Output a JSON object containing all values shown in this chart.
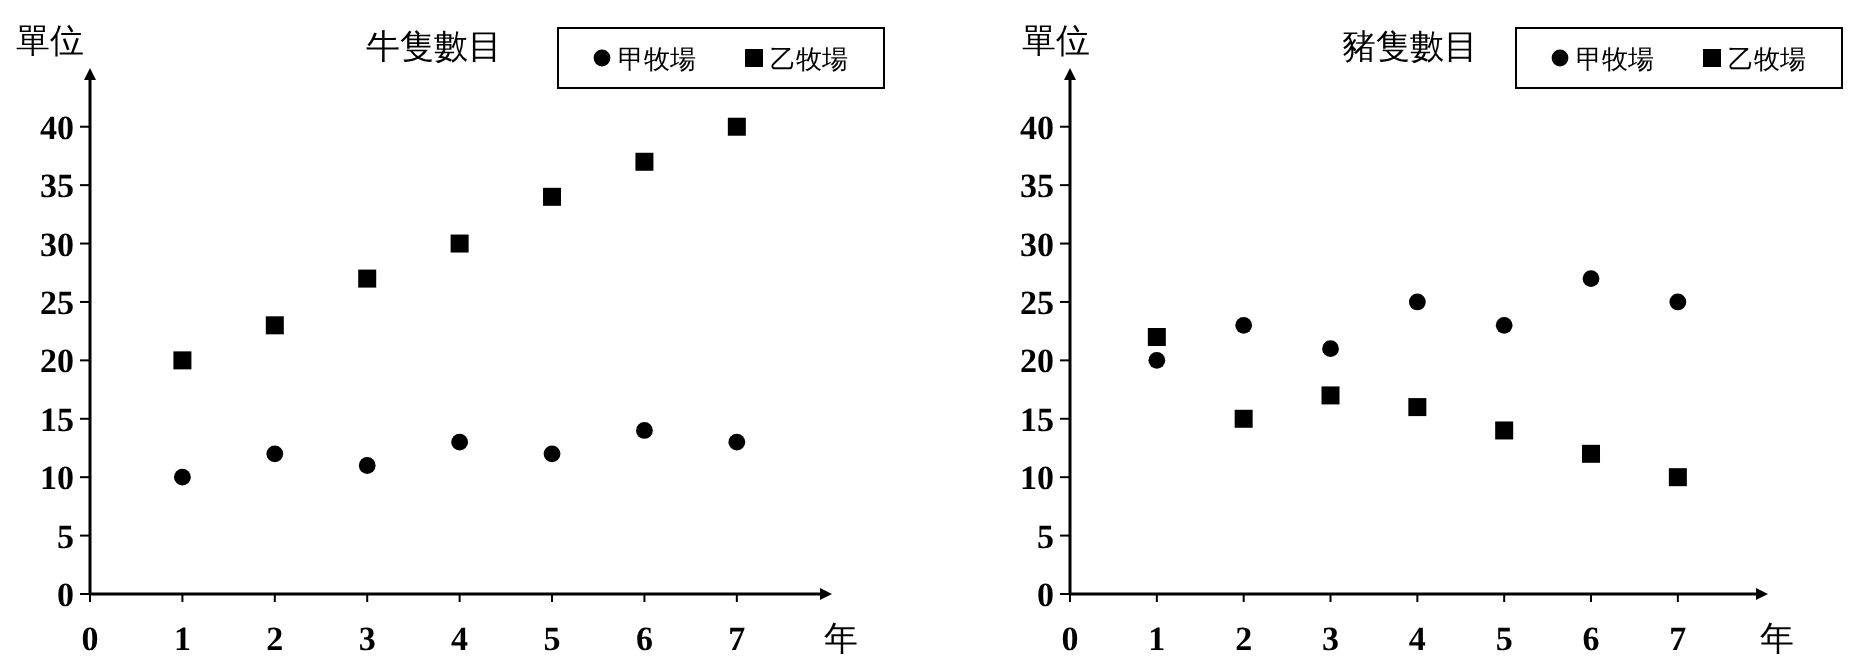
{
  "chart_data": [
    {
      "type": "scatter",
      "title": "牛隻數目",
      "xlabel": "年",
      "ylabel": "單位",
      "x": [
        1,
        2,
        3,
        4,
        5,
        6,
        7
      ],
      "series": [
        {
          "name": "甲牧場",
          "color": "#000000",
          "marker": "circle",
          "values": [
            10,
            12,
            11,
            13,
            12,
            14,
            13
          ]
        },
        {
          "name": "乙牧場",
          "color": "#000000",
          "marker": "square",
          "values": [
            20,
            23,
            27,
            30,
            34,
            37,
            40
          ]
        }
      ],
      "xlim": [
        0,
        7.9
      ],
      "xticks": [
        0,
        1,
        2,
        3,
        4,
        5,
        6,
        7
      ],
      "ylim": [
        0,
        44
      ],
      "yticks": [
        0,
        5,
        10,
        15,
        20,
        25,
        30,
        35,
        40
      ],
      "grid": false,
      "legend": "top right"
    },
    {
      "type": "scatter",
      "title": "豬隻數目",
      "xlabel": "年",
      "ylabel": "單位",
      "x": [
        1,
        2,
        3,
        4,
        5,
        6,
        7
      ],
      "series": [
        {
          "name": "甲牧場",
          "color": "#000000",
          "marker": "circle",
          "values": [
            20,
            23,
            21,
            25,
            23,
            27,
            25
          ]
        },
        {
          "name": "乙牧場",
          "color": "#000000",
          "marker": "square",
          "values": [
            22,
            15,
            17,
            16,
            14,
            12,
            10
          ]
        }
      ],
      "xlim": [
        0,
        7.9
      ],
      "xticks": [
        0,
        1,
        2,
        3,
        4,
        5,
        6,
        7
      ],
      "ylim": [
        0,
        44
      ],
      "yticks": [
        0,
        5,
        10,
        15,
        20,
        25,
        30,
        35,
        40
      ],
      "grid": false,
      "legend": "top right"
    }
  ]
}
